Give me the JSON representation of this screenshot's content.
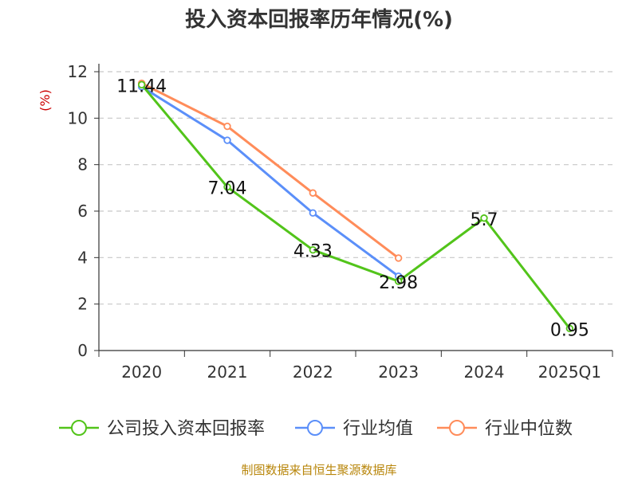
{
  "chart_data": {
    "type": "line",
    "title": "投入资本回报率历年情况(%)",
    "ylabel": "(%)",
    "xlabel": "",
    "categories": [
      "2020",
      "2021",
      "2022",
      "2023",
      "2024",
      "2025Q1"
    ],
    "ylim": [
      0,
      12
    ],
    "yticks": [
      0,
      2,
      4,
      6,
      8,
      10,
      12
    ],
    "grid": true,
    "legend_position": "bottom",
    "series": [
      {
        "name": "公司投入资本回报率",
        "color": "#52c41a",
        "values": [
          11.44,
          7.04,
          4.33,
          2.98,
          5.7,
          0.95
        ],
        "labels": [
          "11.44",
          "7.04",
          "4.33",
          "2.98",
          "5.7",
          "0.95"
        ]
      },
      {
        "name": "行业均值",
        "color": "#5b8ff9",
        "values": [
          11.35,
          9.05,
          5.92,
          3.2,
          null,
          null
        ]
      },
      {
        "name": "行业中位数",
        "color": "#ff8c5a",
        "values": [
          11.5,
          9.65,
          6.78,
          3.98,
          null,
          null
        ]
      }
    ]
  },
  "footer": {
    "source": "制图数据来自恒生聚源数据库"
  }
}
